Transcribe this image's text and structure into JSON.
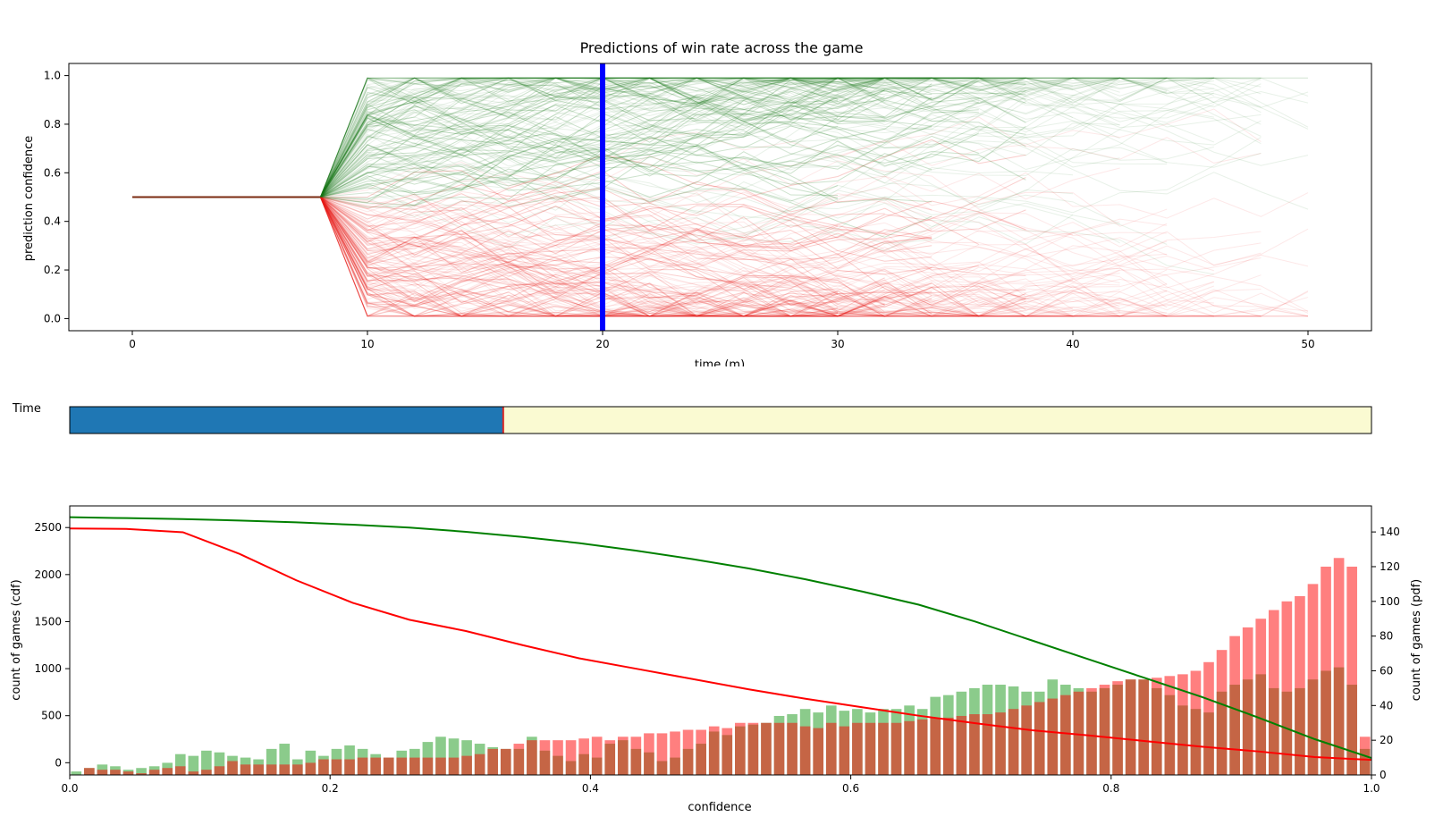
{
  "chart_data": [
    {
      "type": "line",
      "title": "Predictions of win rate across the game",
      "xlabel": "time (m)",
      "ylabel": "prediction confidence",
      "xlim": [
        -2.7,
        52.7
      ],
      "ylim": [
        -0.05,
        1.05
      ],
      "xticks": [
        "0",
        "10",
        "20",
        "30",
        "40",
        "50"
      ],
      "yticks": [
        "0.0",
        "0.2",
        "0.4",
        "0.6",
        "0.8",
        "1.0"
      ],
      "initial_value": 0.5,
      "initial_until": 8,
      "series_colors": {
        "win": "#1a7a1a",
        "loss": "#e8201a"
      },
      "marker": {
        "x": 20,
        "color": "#0000ff"
      }
    },
    {
      "type": "bar",
      "xlabel": "confidence",
      "ylabel": "count of games (cdf)",
      "ylabel_right": "count of games (pdf)",
      "xlim": [
        0,
        1.0
      ],
      "ylim": [
        -130,
        2730
      ],
      "ylim_right": [
        0,
        155
      ],
      "xticks": [
        "0.0",
        "0.2",
        "0.4",
        "0.6",
        "0.8",
        "1.0"
      ],
      "yticks": [
        "0",
        "500",
        "1000",
        "1500",
        "2000",
        "2500"
      ],
      "yticks_right": [
        "0",
        "20",
        "40",
        "60",
        "80",
        "100",
        "120",
        "140"
      ],
      "colors": {
        "win": "#2ca02c",
        "loss": "#ff0000"
      },
      "categories_step": 0.01,
      "series": [
        {
          "key": "win_pdf",
          "values": [
            2,
            4,
            6,
            5,
            3,
            4,
            5,
            7,
            12,
            11,
            14,
            13,
            11,
            10,
            9,
            15,
            18,
            9,
            14,
            11,
            15,
            17,
            15,
            12,
            10,
            14,
            15,
            19,
            22,
            21,
            20,
            18,
            16,
            15,
            15,
            22,
            14,
            11,
            8,
            12,
            10,
            18,
            20,
            15,
            13,
            8,
            10,
            15,
            18,
            25,
            23,
            28,
            29,
            30,
            34,
            35,
            38,
            36,
            40,
            37,
            38,
            36,
            38,
            38,
            40,
            38,
            45,
            46,
            48,
            50,
            52,
            52,
            51,
            48,
            48,
            55,
            52,
            50,
            48,
            50,
            52,
            55,
            55,
            50,
            46,
            40,
            38,
            36,
            48,
            52,
            55,
            58,
            50,
            48,
            50,
            55,
            60,
            62,
            52,
            15
          ]
        },
        {
          "key": "loss_pdf",
          "values": [
            0,
            4,
            3,
            3,
            2,
            1,
            3,
            4,
            5,
            2,
            3,
            5,
            8,
            6,
            6,
            6,
            6,
            6,
            7,
            9,
            9,
            9,
            10,
            10,
            10,
            10,
            10,
            10,
            10,
            10,
            11,
            12,
            15,
            15,
            18,
            20,
            20,
            20,
            20,
            21,
            22,
            20,
            22,
            22,
            24,
            24,
            25,
            26,
            26,
            28,
            27,
            30,
            30,
            30,
            30,
            30,
            28,
            27,
            30,
            28,
            30,
            30,
            30,
            30,
            31,
            32,
            33,
            33,
            34,
            35,
            35,
            36,
            38,
            40,
            42,
            44,
            46,
            48,
            50,
            52,
            54,
            55,
            55,
            56,
            57,
            58,
            60,
            65,
            72,
            80,
            85,
            90,
            95,
            100,
            103,
            110,
            120,
            125,
            120,
            22
          ]
        },
        {
          "key": "win_cdf",
          "values": [
            2610,
            2600,
            2590,
            2575,
            2555,
            2530,
            2500,
            2455,
            2400,
            2335,
            2255,
            2165,
            2065,
            1950,
            1820,
            1680,
            1500,
            1300,
            1100,
            900,
            700,
            480,
            250,
            50
          ]
        },
        {
          "key": "loss_cdf",
          "values": [
            2490,
            2485,
            2450,
            2220,
            1940,
            1700,
            1520,
            1400,
            1250,
            1110,
            1000,
            890,
            780,
            680,
            590,
            500,
            420,
            345,
            290,
            230,
            170,
            120,
            60,
            30
          ]
        }
      ]
    }
  ],
  "slider": {
    "label": "Time",
    "value_fraction": 0.333,
    "fill_color": "#1f77b4",
    "track_color": "#fafad2",
    "handle_color": "#d62728"
  }
}
